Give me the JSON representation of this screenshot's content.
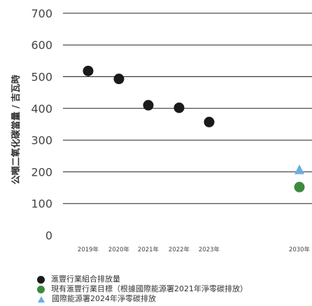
{
  "chart_data": {
    "type": "scatter",
    "ylabel": "公噸二氧化碳當量 / 吉瓦時",
    "yticks": [
      0,
      100,
      200,
      300,
      400,
      500,
      600,
      700
    ],
    "ylim": [
      0,
      700
    ],
    "grid": true,
    "categories": [
      "2019年",
      "2020年",
      "2021年",
      "2022年",
      "2023年",
      "2030年"
    ],
    "series": [
      {
        "name": "滙豐行業組合排放量",
        "color": "#1a1a1a",
        "marker": "circle",
        "points": [
          {
            "x": "2019年",
            "y": 518
          },
          {
            "x": "2020年",
            "y": 493
          },
          {
            "x": "2021年",
            "y": 410
          },
          {
            "x": "2022年",
            "y": 402
          },
          {
            "x": "2023年",
            "y": 357
          }
        ]
      },
      {
        "name": "現有滙豐行業目標（根據國際能源署2021年淨零碳排放）",
        "color": "#3d8a3d",
        "marker": "circle",
        "points": [
          {
            "x": "2030年",
            "y": 152
          }
        ]
      },
      {
        "name": "國際能源署2024年淨零碳排放",
        "color": "#6aaee0",
        "marker": "triangle",
        "points": [
          {
            "x": "2030年",
            "y": 208
          }
        ]
      }
    ],
    "legend_position": "bottom-left"
  }
}
